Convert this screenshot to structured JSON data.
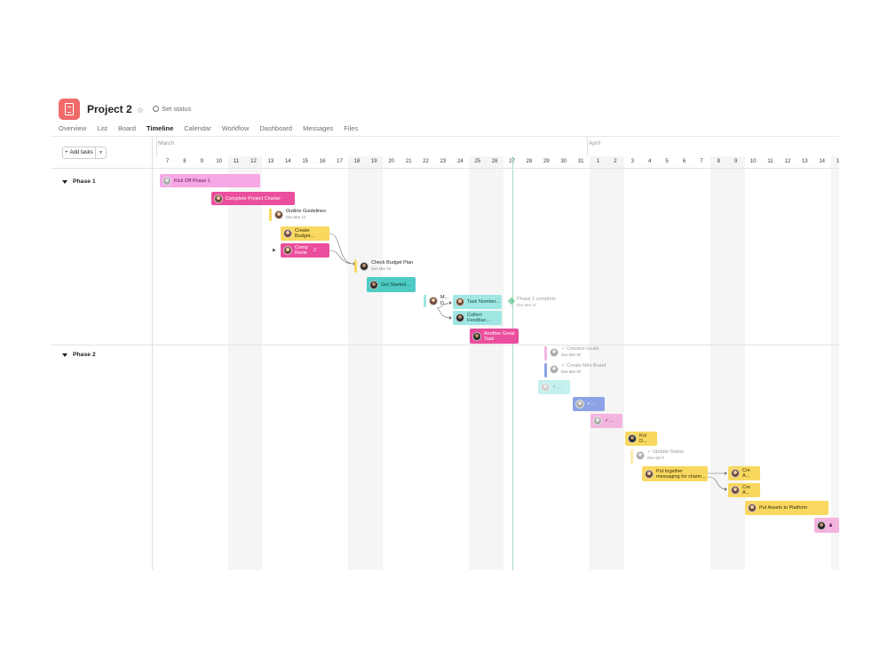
{
  "project": {
    "title": "Project 2",
    "set_status": "Set status",
    "logo_color": "#f06a6a",
    "icons": [
      "notebook-icon",
      "chevron-down-icon",
      "star-icon",
      "status-circle-icon"
    ]
  },
  "tabs": [
    {
      "label": "Overview"
    },
    {
      "label": "List"
    },
    {
      "label": "Board"
    },
    {
      "label": "Timeline",
      "active": true
    },
    {
      "label": "Calendar"
    },
    {
      "label": "Workflow"
    },
    {
      "label": "Dashboard"
    },
    {
      "label": "Messages"
    },
    {
      "label": "Files"
    }
  ],
  "toolbar": {
    "add_tasks_label": "Add tasks"
  },
  "timeline": {
    "months": [
      {
        "label": "March"
      },
      {
        "label": "April"
      }
    ],
    "days": [
      "7",
      "8",
      "9",
      "10",
      "11",
      "12",
      "13",
      "14",
      "15",
      "16",
      "17",
      "18",
      "19",
      "20",
      "21",
      "22",
      "23",
      "24",
      "25",
      "26",
      "27",
      "28",
      "29",
      "30",
      "31",
      "1",
      "2",
      "3",
      "4",
      "5",
      "6",
      "7",
      "8",
      "9",
      "10",
      "11",
      "12",
      "13",
      "14",
      "15"
    ],
    "weekend_days": [
      4,
      5,
      11,
      12,
      18,
      19,
      25,
      26,
      32,
      33,
      39
    ],
    "today_day": 20
  },
  "phases": [
    {
      "label": "Phase 1"
    },
    {
      "label": "Phase 2"
    }
  ],
  "tasks": {
    "kickoff": "Kick Off Phase 1",
    "charter": "Complete Project Charter",
    "outline": "Outline Guidelines",
    "outline_due": "Due Mar 13",
    "budget": "Create Budget...",
    "comp_review": "Comp Revie",
    "comp_count": "2",
    "check_budget": "Check Budget Plan",
    "check_budget_due": "Due Mar 18",
    "get_started": "Get Started...",
    "m_task": "M... D...",
    "task_number": "Task Number...",
    "collect": "Collect Feedbac...",
    "another": "Another Great Task",
    "phase1_complete": "Phase 1 complete",
    "phase1_due": "Due Mar 27",
    "connect_goals": "Connect Goals",
    "connect_goals_due": "Due Mar 30",
    "mini_board": "Create Mini Board",
    "mini_board_due": "Due Mar 30",
    "kol": "Kol D...",
    "update_status": "Update Status",
    "update_status_due": "Due Apr 3",
    "put_together": "Put together messaging for chann...",
    "cre1": "Cre A...",
    "cre2": "Cre A...",
    "assets": "Put Assets to Platform"
  }
}
